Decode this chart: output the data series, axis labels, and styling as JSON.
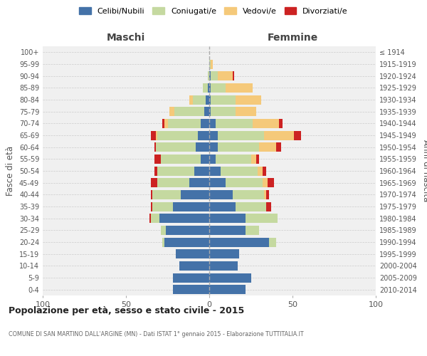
{
  "age_groups": [
    "0-4",
    "5-9",
    "10-14",
    "15-19",
    "20-24",
    "25-29",
    "30-34",
    "35-39",
    "40-44",
    "45-49",
    "50-54",
    "55-59",
    "60-64",
    "65-69",
    "70-74",
    "75-79",
    "80-84",
    "85-89",
    "90-94",
    "95-99",
    "100+"
  ],
  "birth_years": [
    "2010-2014",
    "2005-2009",
    "2000-2004",
    "1995-1999",
    "1990-1994",
    "1985-1989",
    "1980-1984",
    "1975-1979",
    "1970-1974",
    "1965-1969",
    "1960-1964",
    "1955-1959",
    "1950-1954",
    "1945-1949",
    "1940-1944",
    "1935-1939",
    "1930-1934",
    "1925-1929",
    "1920-1924",
    "1915-1919",
    "≤ 1914"
  ],
  "colors": {
    "celibi": "#4472a8",
    "coniugati": "#c5d9a0",
    "vedovi": "#f5c97a",
    "divorziati": "#cc2222"
  },
  "maschi": {
    "celibi": [
      22,
      22,
      18,
      20,
      27,
      26,
      30,
      22,
      17,
      12,
      9,
      5,
      8,
      7,
      5,
      3,
      2,
      1,
      0,
      0,
      0
    ],
    "coniugati": [
      0,
      0,
      0,
      0,
      1,
      3,
      5,
      12,
      17,
      19,
      22,
      24,
      24,
      24,
      20,
      18,
      8,
      3,
      1,
      0,
      0
    ],
    "vedovi": [
      0,
      0,
      0,
      0,
      0,
      0,
      0,
      0,
      0,
      0,
      0,
      0,
      0,
      1,
      2,
      3,
      2,
      0,
      0,
      0,
      0
    ],
    "divorziati": [
      0,
      0,
      0,
      0,
      0,
      0,
      1,
      1,
      1,
      4,
      2,
      4,
      1,
      3,
      1,
      0,
      0,
      0,
      0,
      0,
      0
    ]
  },
  "femmine": {
    "celibi": [
      22,
      25,
      17,
      18,
      36,
      22,
      22,
      16,
      14,
      10,
      7,
      4,
      5,
      5,
      4,
      1,
      1,
      1,
      1,
      0,
      0
    ],
    "coniugati": [
      0,
      0,
      0,
      0,
      4,
      8,
      19,
      18,
      19,
      22,
      22,
      21,
      25,
      28,
      22,
      15,
      15,
      9,
      4,
      1,
      0
    ],
    "vedovi": [
      0,
      0,
      0,
      0,
      0,
      0,
      0,
      0,
      1,
      3,
      3,
      3,
      10,
      18,
      16,
      12,
      15,
      16,
      9,
      1,
      0
    ],
    "divorziati": [
      0,
      0,
      0,
      0,
      0,
      0,
      0,
      3,
      2,
      4,
      2,
      2,
      3,
      4,
      2,
      0,
      0,
      0,
      1,
      0,
      0
    ]
  },
  "title": "Popolazione per età, sesso e stato civile - 2015",
  "subtitle": "COMUNE DI SAN MARTINO DALL'ARGINE (MN) - Dati ISTAT 1° gennaio 2015 - Elaborazione TUTTITALIA.IT",
  "xlabel_left": "Maschi",
  "xlabel_right": "Femmine",
  "ylabel_left": "Fasce di età",
  "ylabel_right": "Anni di nascita",
  "xlim": 100,
  "legend_labels": [
    "Celibi/Nubili",
    "Coniugati/e",
    "Vedovi/e",
    "Divorziati/e"
  ]
}
